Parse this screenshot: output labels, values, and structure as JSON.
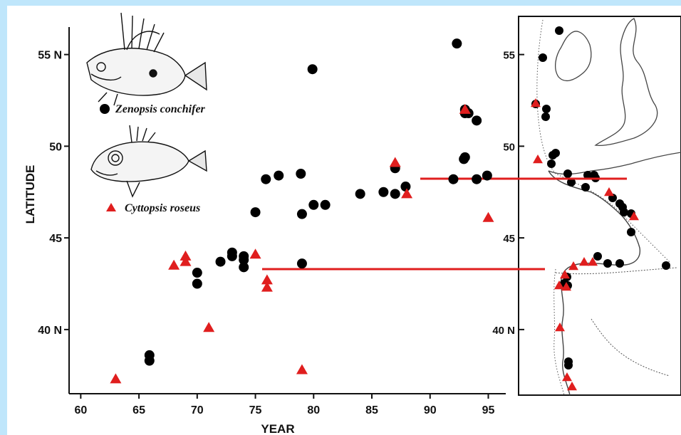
{
  "chart_data": {
    "type": "scatter",
    "xlabel": "YEAR",
    "ylabel": "LATITUDE",
    "xlim": [
      59,
      96.5
    ],
    "ylim": [
      36.5,
      56.5
    ],
    "x_ticks": [
      "60",
      "65",
      "70",
      "75",
      "80",
      "85",
      "90",
      "95"
    ],
    "x_tick_values": [
      60,
      65,
      70,
      75,
      80,
      85,
      90,
      95
    ],
    "y_ticks": [
      "40 N",
      "45",
      "50",
      "55 N"
    ],
    "y_tick_values": [
      40,
      45,
      50,
      55
    ],
    "grid": false,
    "legend_placement": "top-left",
    "series": [
      {
        "name": "Zenopsis conchifer",
        "marker": "circle",
        "color": "#000000",
        "points": [
          [
            65.9,
            38.6
          ],
          [
            65.9,
            38.3
          ],
          [
            70.0,
            43.1
          ],
          [
            70.0,
            42.5
          ],
          [
            72.0,
            43.7
          ],
          [
            73.0,
            44.2
          ],
          [
            73.0,
            44.0
          ],
          [
            74.0,
            43.8
          ],
          [
            74.0,
            43.4
          ],
          [
            74.0,
            44.0
          ],
          [
            75.0,
            46.4
          ],
          [
            75.9,
            48.2
          ],
          [
            77.0,
            48.4
          ],
          [
            78.9,
            48.5
          ],
          [
            79.0,
            46.3
          ],
          [
            79.0,
            43.6
          ],
          [
            79.9,
            54.2
          ],
          [
            80.0,
            46.8
          ],
          [
            81.0,
            46.8
          ],
          [
            84.0,
            47.4
          ],
          [
            86.0,
            47.5
          ],
          [
            87.0,
            47.4
          ],
          [
            87.0,
            48.8
          ],
          [
            87.9,
            47.8
          ],
          [
            92.0,
            48.2
          ],
          [
            92.3,
            55.6
          ],
          [
            92.9,
            49.3
          ],
          [
            93.0,
            49.4
          ],
          [
            93.0,
            52.0
          ],
          [
            93.3,
            51.8
          ],
          [
            93.0,
            51.8
          ],
          [
            94.0,
            51.4
          ],
          [
            94.0,
            48.2
          ],
          [
            94.9,
            48.4
          ]
        ]
      },
      {
        "name": "Cyttopsis roseus",
        "marker": "triangle",
        "color": "#e01e1e",
        "points": [
          [
            63.0,
            37.3
          ],
          [
            68.0,
            43.5
          ],
          [
            69.0,
            44.0
          ],
          [
            69.0,
            43.7
          ],
          [
            71.0,
            40.1
          ],
          [
            75.0,
            44.1
          ],
          [
            76.0,
            42.7
          ],
          [
            76.0,
            42.3
          ],
          [
            79.0,
            37.8
          ],
          [
            87.0,
            49.1
          ],
          [
            88.0,
            47.4
          ],
          [
            93.0,
            52.0
          ],
          [
            95.0,
            46.1
          ]
        ]
      }
    ],
    "map": {
      "lat_ticks": [
        "55",
        "50",
        "45",
        "40 N"
      ],
      "lat_tick_values": [
        55,
        50,
        45,
        40
      ]
    }
  },
  "colors": {
    "background": "#bfe6fb",
    "zenopsis": "#000000",
    "cyttopsis": "#e01e1e",
    "connector": "#e01e1e"
  },
  "icons": [
    "john-dory-fish-drawing",
    "boarfish-drawing"
  ]
}
